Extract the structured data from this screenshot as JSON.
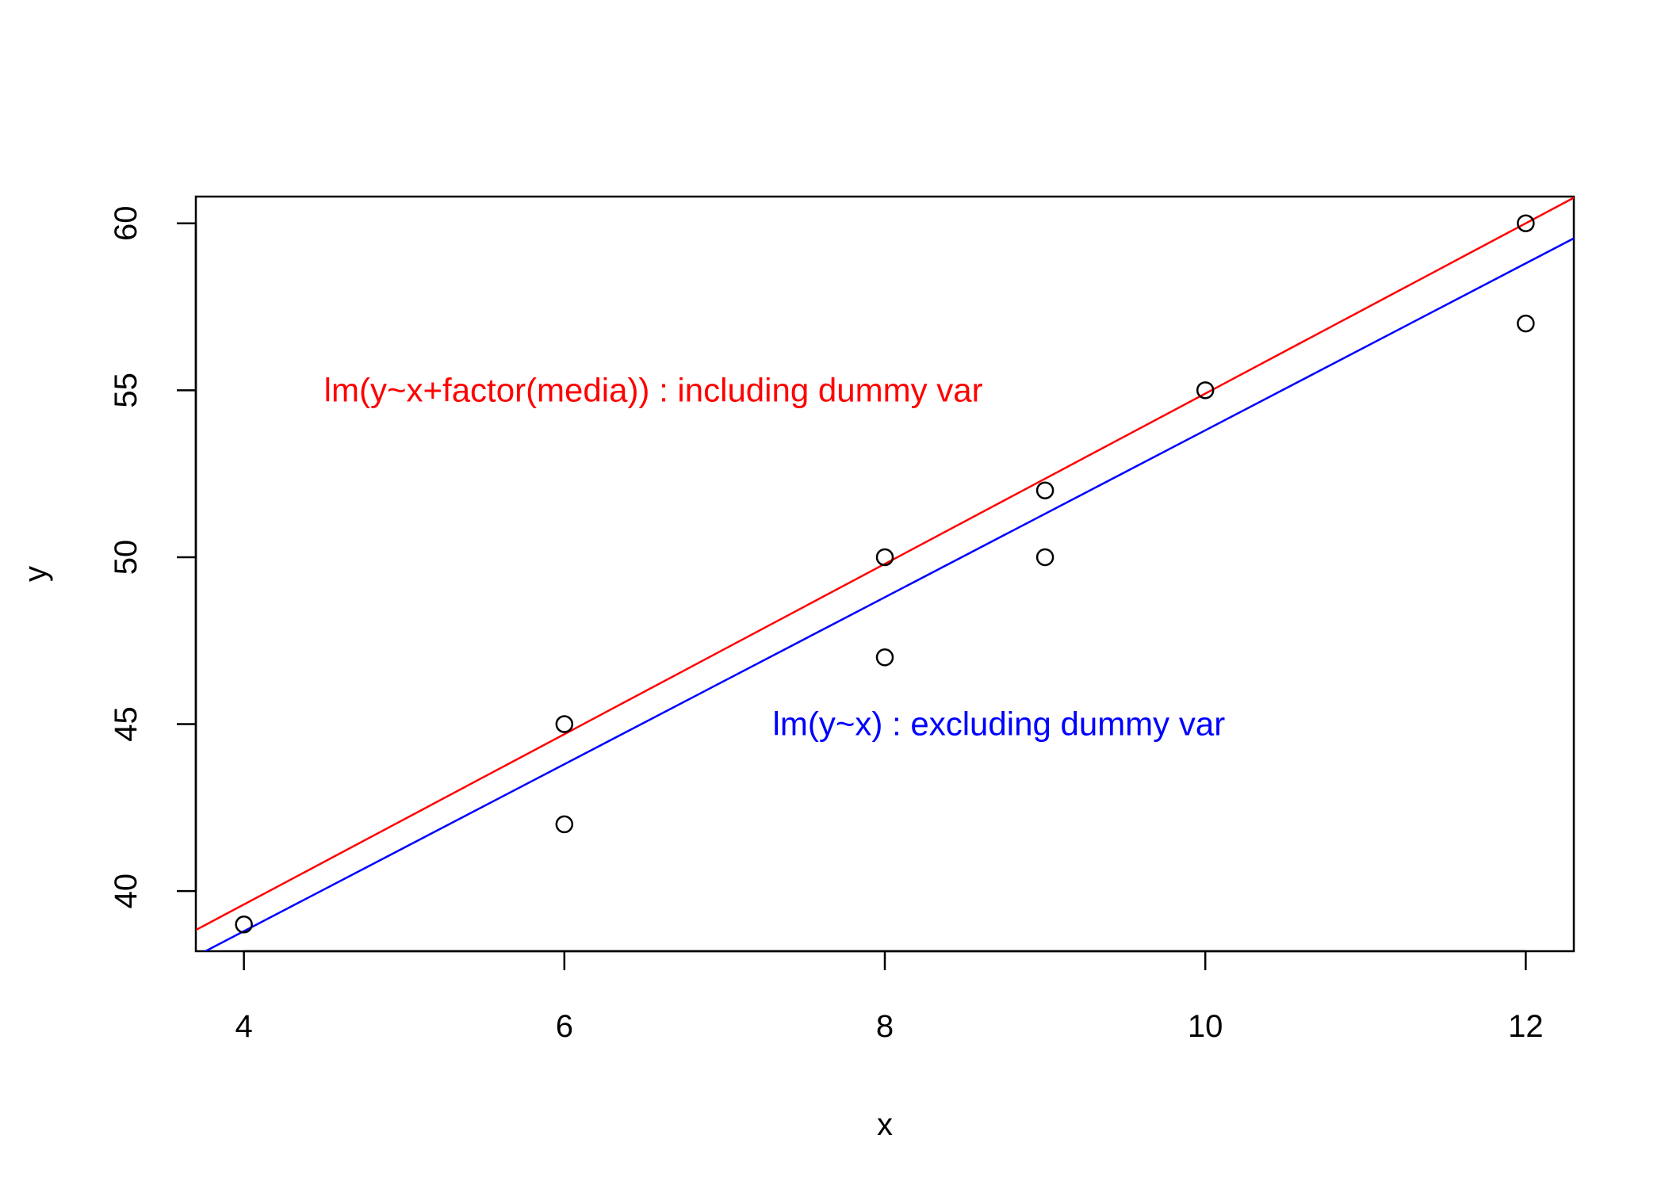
{
  "chart_data": {
    "type": "scatter",
    "title": "",
    "xlabel": "x",
    "ylabel": "y",
    "xlim": [
      3.7,
      12.3
    ],
    "ylim": [
      38.2,
      60.8
    ],
    "xticks": [
      4,
      6,
      8,
      10,
      12
    ],
    "yticks": [
      40,
      45,
      50,
      55,
      60
    ],
    "grid": false,
    "points": [
      {
        "x": 4,
        "y": 39
      },
      {
        "x": 6,
        "y": 42
      },
      {
        "x": 6,
        "y": 45
      },
      {
        "x": 8,
        "y": 47
      },
      {
        "x": 8,
        "y": 50
      },
      {
        "x": 9,
        "y": 50
      },
      {
        "x": 9,
        "y": 52
      },
      {
        "x": 10,
        "y": 55
      },
      {
        "x": 12,
        "y": 57
      },
      {
        "x": 12,
        "y": 60
      }
    ],
    "lines": [
      {
        "intercept": 29.4,
        "slope": 2.55,
        "color": "#ff0000"
      },
      {
        "intercept": 28.8,
        "slope": 2.5,
        "color": "#0000ff"
      }
    ],
    "annotations": [
      {
        "text": "lm(y~x+factor(media)) : including dummy var",
        "x": 4.5,
        "y": 55,
        "color": "#ff0000"
      },
      {
        "text": "lm(y~x) : excluding dummy var",
        "x": 7.3,
        "y": 45,
        "color": "#0000ff"
      }
    ]
  }
}
